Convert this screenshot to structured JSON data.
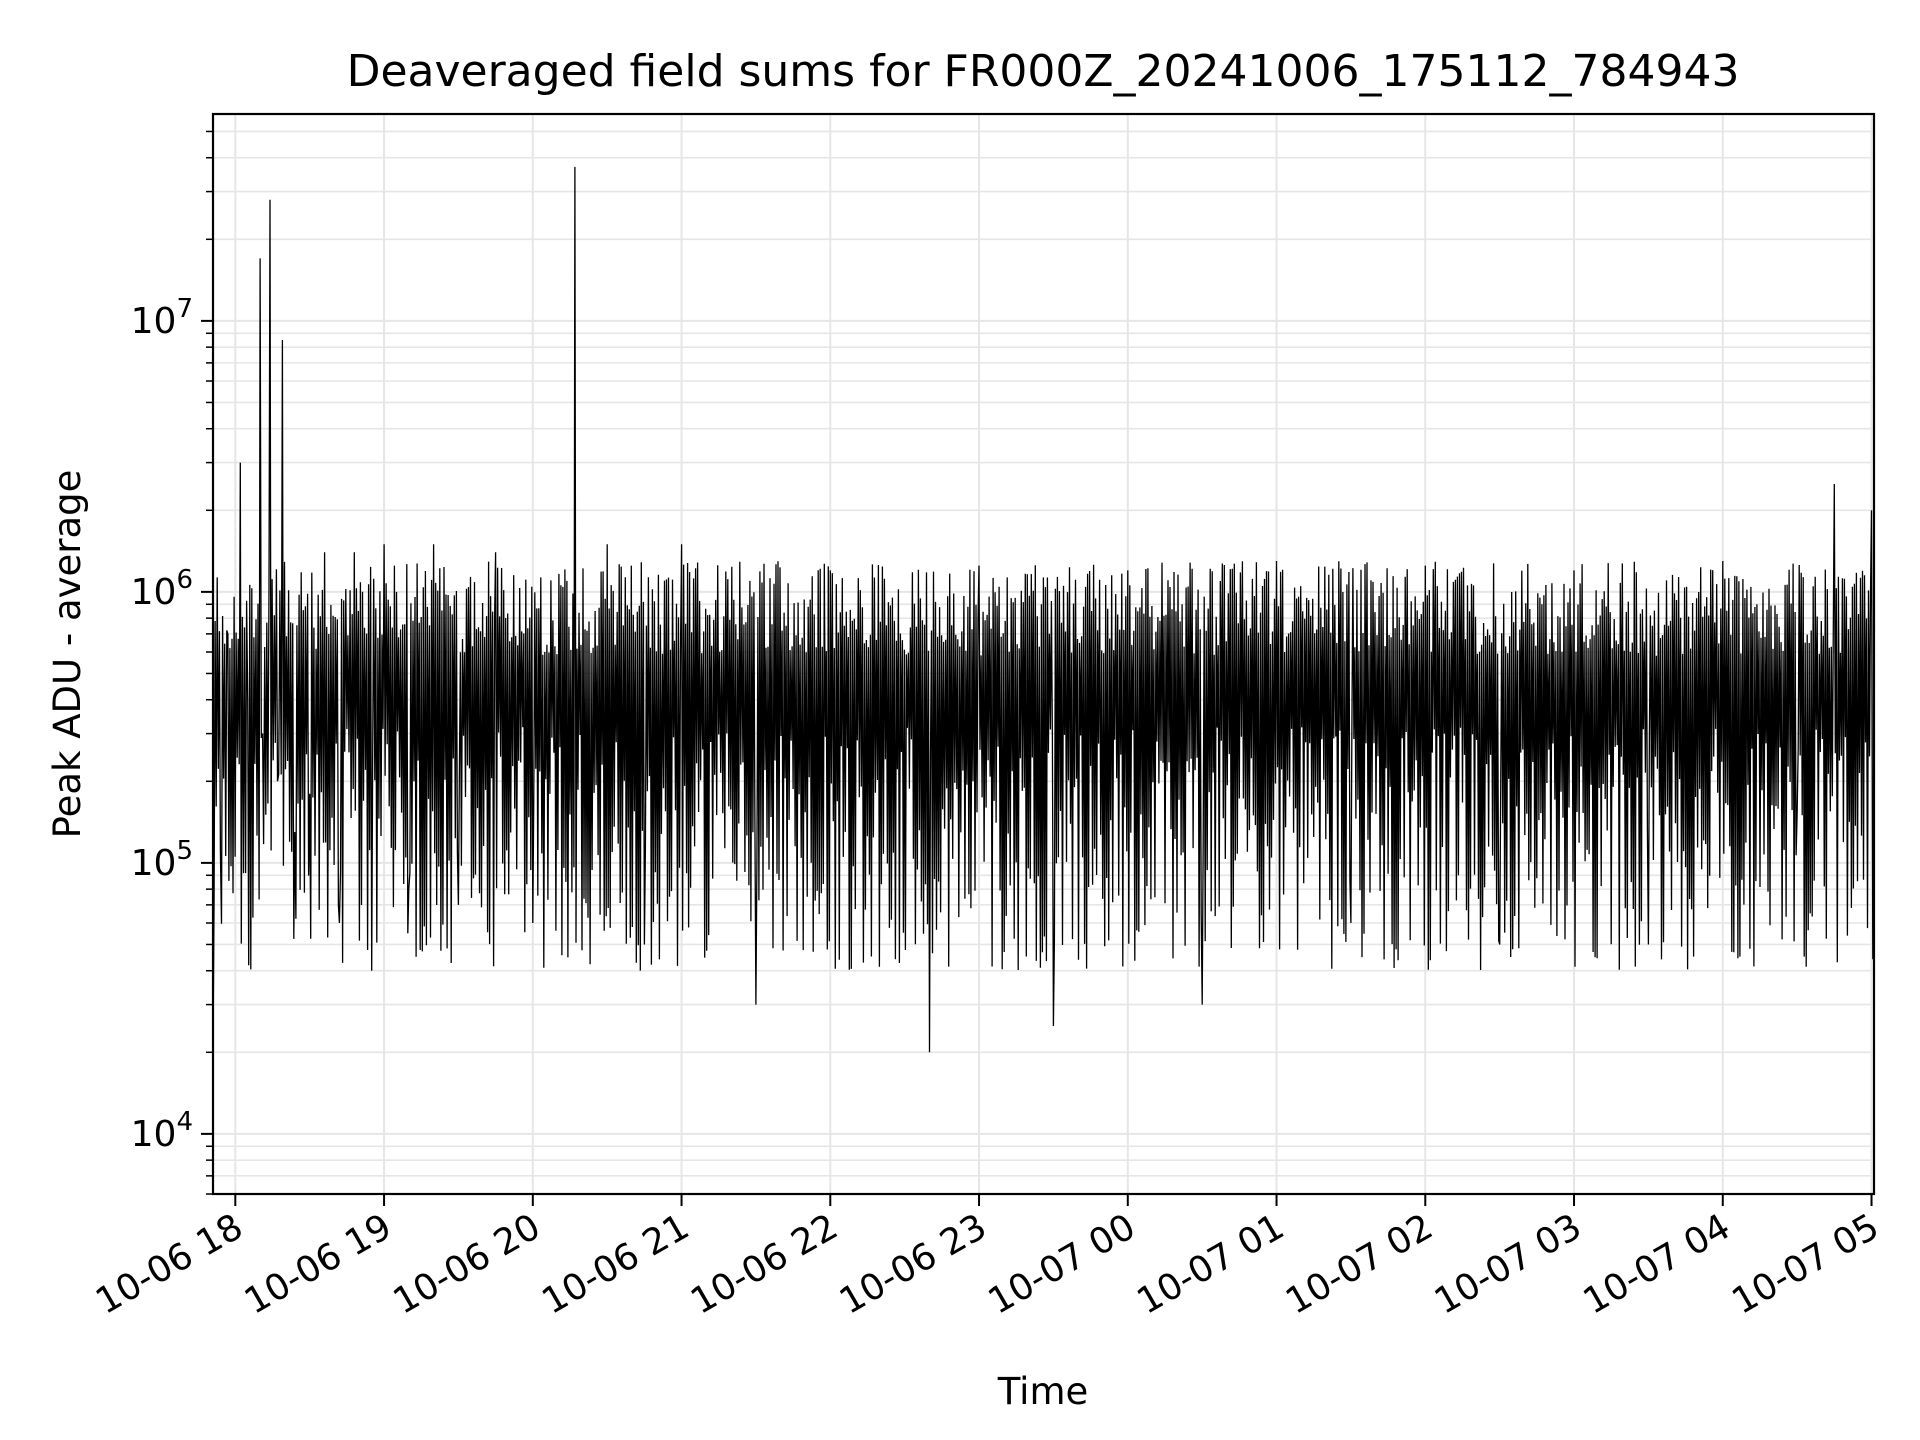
{
  "chart_data": {
    "type": "line",
    "title": "Deaveraged field sums for FR000Z_20241006_175112_784943",
    "xlabel": "Time",
    "ylabel": "Peak ADU - average",
    "y_scale": "log",
    "ylim": [
      6000,
      58000000
    ],
    "xlim": [
      "2024-10-06 17:51",
      "2024-10-07 05:01"
    ],
    "grid": true,
    "grid_color": "#e6e6e6",
    "line_color": "#000000",
    "x_ticks": [
      "10-06 18",
      "10-06 19",
      "10-06 20",
      "10-06 21",
      "10-06 22",
      "10-06 23",
      "10-07 00",
      "10-07 01",
      "10-07 02",
      "10-07 03",
      "10-07 04",
      "10-07 05"
    ],
    "y_ticks": [
      {
        "value": 10000,
        "base": "10",
        "exp": "4"
      },
      {
        "value": 100000,
        "base": "10",
        "exp": "5"
      },
      {
        "value": 1000000,
        "base": "10",
        "exp": "6"
      },
      {
        "value": 10000000,
        "base": "10",
        "exp": "7"
      }
    ],
    "series": [
      {
        "color": "#000000",
        "x": [
          "2024-10-06 17:51",
          "2024-10-06 17:54",
          "2024-10-06 17:57",
          "2024-10-06 18:02",
          "2024-10-06 18:05",
          "2024-10-06 18:10",
          "2024-10-06 18:11",
          "2024-10-06 18:14",
          "2024-10-06 18:17",
          "2024-10-06 18:19",
          "2024-10-06 18:24",
          "2024-10-06 18:30",
          "2024-10-06 18:36",
          "2024-10-06 18:42",
          "2024-10-06 18:48",
          "2024-10-06 18:55",
          "2024-10-06 19:00",
          "2024-10-06 19:10",
          "2024-10-06 19:20",
          "2024-10-06 19:30",
          "2024-10-06 19:45",
          "2024-10-06 20:00",
          "2024-10-06 20:17",
          "2024-10-06 20:30",
          "2024-10-06 20:45",
          "2024-10-06 21:00",
          "2024-10-06 21:30",
          "2024-10-06 22:00",
          "2024-10-06 22:40",
          "2024-10-06 23:00",
          "2024-10-06 23:30",
          "2024-10-07 00:00",
          "2024-10-07 00:30",
          "2024-10-07 01:00",
          "2024-10-07 01:30",
          "2024-10-07 02:00",
          "2024-10-07 02:30",
          "2024-10-07 03:00",
          "2024-10-07 03:30",
          "2024-10-07 04:00",
          "2024-10-07 04:30",
          "2024-10-07 04:45",
          "2024-10-07 05:00",
          "2024-10-07 05:01"
        ],
        "y": [
          20000,
          110000,
          700000,
          3000000,
          400000,
          17000000,
          300000,
          28000000,
          200000,
          8500000,
          130000,
          180000,
          1400000,
          60000,
          1400000,
          40000,
          1500000,
          80000,
          1500000,
          70000,
          1400000,
          60000,
          37000000,
          1500000,
          50000,
          1500000,
          30000,
          1200000,
          20000,
          1250000,
          25000,
          1200000,
          30000,
          1300000,
          60000,
          1250000,
          50000,
          1200000,
          50000,
          1300000,
          150000,
          2500000,
          2000000,
          95000
        ],
        "description_band": {
          "typical_low": 40000,
          "typical_high": 1300000
        }
      }
    ]
  }
}
